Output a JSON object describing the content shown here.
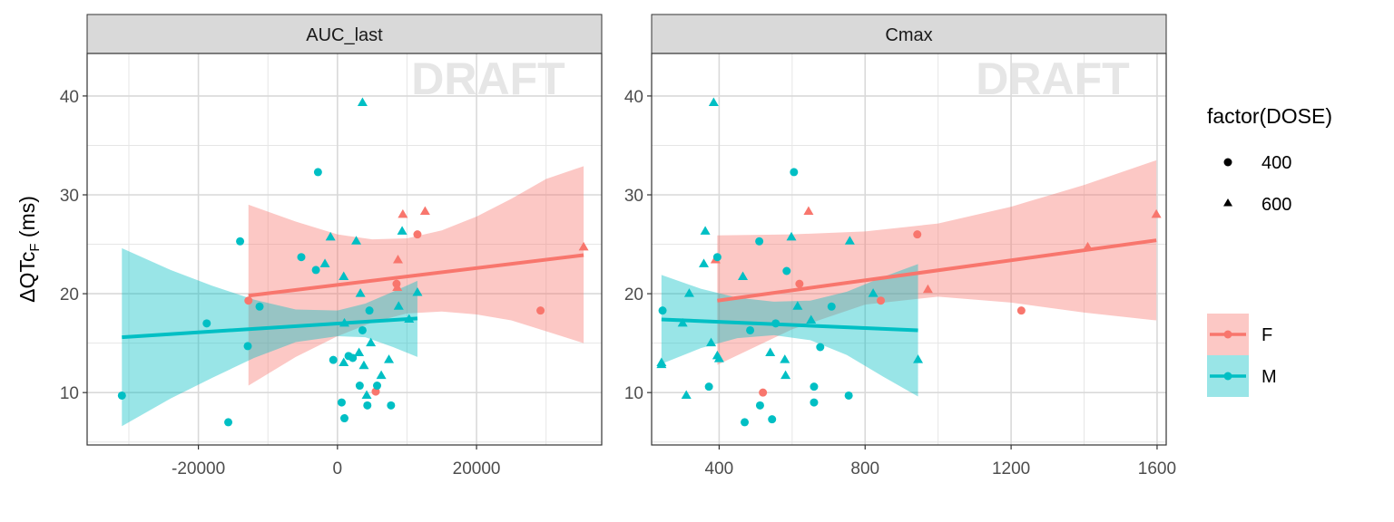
{
  "figure": {
    "ylabel_main": "ΔQTc",
    "ylabel_sub": "F",
    "ylabel_unit": " (ms)",
    "watermark": "DRAFT"
  },
  "colors": {
    "F": "#F8766D",
    "M": "#00BFC4",
    "strip_bg": "#D9D9D9",
    "watermark": "#E6E6E6",
    "grid": "#D9D9D9"
  },
  "legend": {
    "dose_title": "factor(DOSE)",
    "dose_items": [
      {
        "label": "400",
        "shape": "circle"
      },
      {
        "label": "600",
        "shape": "triangle"
      }
    ],
    "sex_items": [
      {
        "label": "F",
        "color": "#F8766D"
      },
      {
        "label": "M",
        "color": "#00BFC4"
      }
    ]
  },
  "chart_data": [
    {
      "type": "scatter",
      "facet": "AUC_last",
      "xlim": [
        -36000,
        38000
      ],
      "ylim": [
        4.7,
        44.3
      ],
      "xticks": [
        -20000,
        0,
        20000
      ],
      "xticklabels": [
        "-20000",
        "0",
        "20000"
      ],
      "yticks": [
        10,
        20,
        30,
        40
      ],
      "grid": true,
      "series": [
        {
          "name": "F",
          "points": [
            {
              "x": -12800,
              "y": 19.3,
              "dose": "400"
            },
            {
              "x": 8500,
              "y": 21.0,
              "dose": "400"
            },
            {
              "x": 5500,
              "y": 10.1,
              "dose": "400"
            },
            {
              "x": 11500,
              "y": 26.0,
              "dose": "400"
            },
            {
              "x": 29200,
              "y": 18.3,
              "dose": "400"
            },
            {
              "x": 9400,
              "y": 28.0,
              "dose": "600"
            },
            {
              "x": 12600,
              "y": 28.3,
              "dose": "600"
            },
            {
              "x": 8700,
              "y": 23.4,
              "dose": "600"
            },
            {
              "x": 8600,
              "y": 20.6,
              "dose": "600"
            },
            {
              "x": 35400,
              "y": 24.7,
              "dose": "600"
            }
          ],
          "fit": {
            "x": [
              -12800,
              35400
            ],
            "y": [
              19.8,
              23.9
            ]
          },
          "band": {
            "x": [
              -12800,
              -6000,
              0,
              5000,
              10000,
              15000,
              20000,
              25000,
              30000,
              35400
            ],
            "upper": [
              29.0,
              27.3,
              26.0,
              25.5,
              25.6,
              26.4,
              27.8,
              29.6,
              31.6,
              32.9
            ],
            "lower": [
              10.7,
              13.6,
              15.7,
              17.1,
              18.0,
              18.2,
              17.9,
              17.3,
              16.2,
              15.0
            ]
          }
        },
        {
          "name": "M",
          "points": [
            {
              "x": -31000,
              "y": 9.7,
              "dose": "400"
            },
            {
              "x": -18800,
              "y": 17.0,
              "dose": "400"
            },
            {
              "x": -15700,
              "y": 7.0,
              "dose": "400"
            },
            {
              "x": -14000,
              "y": 25.3,
              "dose": "400"
            },
            {
              "x": -12900,
              "y": 14.7,
              "dose": "400"
            },
            {
              "x": -11200,
              "y": 18.7,
              "dose": "400"
            },
            {
              "x": -5200,
              "y": 23.7,
              "dose": "400"
            },
            {
              "x": -3100,
              "y": 22.4,
              "dose": "400"
            },
            {
              "x": -2800,
              "y": 32.3,
              "dose": "400"
            },
            {
              "x": -600,
              "y": 13.3,
              "dose": "400"
            },
            {
              "x": 600,
              "y": 9.0,
              "dose": "400"
            },
            {
              "x": 1000,
              "y": 7.4,
              "dose": "400"
            },
            {
              "x": 1600,
              "y": 13.7,
              "dose": "400"
            },
            {
              "x": 2200,
              "y": 13.5,
              "dose": "400"
            },
            {
              "x": 3600,
              "y": 16.3,
              "dose": "400"
            },
            {
              "x": 3200,
              "y": 10.7,
              "dose": "400"
            },
            {
              "x": 4600,
              "y": 18.3,
              "dose": "400"
            },
            {
              "x": 4300,
              "y": 8.7,
              "dose": "400"
            },
            {
              "x": 5700,
              "y": 10.7,
              "dose": "400"
            },
            {
              "x": 7700,
              "y": 8.7,
              "dose": "400"
            },
            {
              "x": 3600,
              "y": 39.3,
              "dose": "600"
            },
            {
              "x": -1800,
              "y": 23.0,
              "dose": "600"
            },
            {
              "x": -1000,
              "y": 25.7,
              "dose": "600"
            },
            {
              "x": 900,
              "y": 21.7,
              "dose": "600"
            },
            {
              "x": 2700,
              "y": 25.3,
              "dose": "600"
            },
            {
              "x": 3300,
              "y": 20.0,
              "dose": "600"
            },
            {
              "x": 4800,
              "y": 15.0,
              "dose": "600"
            },
            {
              "x": 3100,
              "y": 14.0,
              "dose": "600"
            },
            {
              "x": 3800,
              "y": 12.7,
              "dose": "600"
            },
            {
              "x": 900,
              "y": 13.0,
              "dose": "600"
            },
            {
              "x": 4200,
              "y": 9.7,
              "dose": "600"
            },
            {
              "x": 6300,
              "y": 11.7,
              "dose": "600"
            },
            {
              "x": 7400,
              "y": 13.3,
              "dose": "600"
            },
            {
              "x": 8800,
              "y": 18.7,
              "dose": "600"
            },
            {
              "x": 9300,
              "y": 26.3,
              "dose": "600"
            },
            {
              "x": 10300,
              "y": 17.4,
              "dose": "600"
            },
            {
              "x": 11500,
              "y": 20.1,
              "dose": "600"
            },
            {
              "x": 1000,
              "y": 17.0,
              "dose": "600"
            }
          ],
          "fit": {
            "x": [
              -31000,
              11500
            ],
            "y": [
              15.6,
              17.5
            ]
          },
          "band": {
            "x": [
              -31000,
              -24000,
              -18000,
              -12000,
              -6000,
              0,
              4000,
              8000,
              11500
            ],
            "upper": [
              24.6,
              22.4,
              20.8,
              19.4,
              18.4,
              18.3,
              19.0,
              20.2,
              21.3
            ],
            "lower": [
              6.6,
              9.4,
              11.5,
              13.5,
              15.1,
              15.7,
              15.6,
              14.6,
              13.6
            ]
          }
        }
      ]
    },
    {
      "type": "scatter",
      "facet": "Cmax",
      "xlim": [
        215,
        1625
      ],
      "ylim": [
        4.7,
        44.3
      ],
      "xticks": [
        400,
        800,
        1200,
        1600
      ],
      "xticklabels": [
        "400",
        "800",
        "1200",
        "1600"
      ],
      "yticks": [
        10,
        20,
        30,
        40
      ],
      "grid": true,
      "series": [
        {
          "name": "F",
          "points": [
            {
              "x": 520,
              "y": 10.0,
              "dose": "400"
            },
            {
              "x": 620,
              "y": 21.0,
              "dose": "400"
            },
            {
              "x": 843,
              "y": 19.3,
              "dose": "400"
            },
            {
              "x": 943,
              "y": 26.0,
              "dose": "400"
            },
            {
              "x": 1228,
              "y": 18.3,
              "dose": "400"
            },
            {
              "x": 390,
              "y": 23.4,
              "dose": "600"
            },
            {
              "x": 645,
              "y": 28.3,
              "dose": "600"
            },
            {
              "x": 972,
              "y": 20.4,
              "dose": "600"
            },
            {
              "x": 1410,
              "y": 24.7,
              "dose": "600"
            },
            {
              "x": 1598,
              "y": 28.0,
              "dose": "600"
            }
          ],
          "fit": {
            "x": [
              395,
              1598
            ],
            "y": [
              19.3,
              25.4
            ]
          },
          "band": {
            "x": [
              395,
              600,
              800,
              1000,
              1200,
              1400,
              1598
            ],
            "upper": [
              25.9,
              26.0,
              26.3,
              27.1,
              28.8,
              31.0,
              33.5
            ],
            "lower": [
              12.8,
              16.4,
              18.9,
              19.7,
              19.1,
              18.1,
              17.3
            ]
          }
        },
        {
          "name": "M",
          "points": [
            {
              "x": 245,
              "y": 18.3,
              "dose": "400"
            },
            {
              "x": 395,
              "y": 23.7,
              "dose": "400"
            },
            {
              "x": 372,
              "y": 10.6,
              "dose": "400"
            },
            {
              "x": 470,
              "y": 7.0,
              "dose": "400"
            },
            {
              "x": 485,
              "y": 16.3,
              "dose": "400"
            },
            {
              "x": 510,
              "y": 25.3,
              "dose": "400"
            },
            {
              "x": 512,
              "y": 8.7,
              "dose": "400"
            },
            {
              "x": 545,
              "y": 7.3,
              "dose": "400"
            },
            {
              "x": 555,
              "y": 17.0,
              "dose": "400"
            },
            {
              "x": 585,
              "y": 22.3,
              "dose": "400"
            },
            {
              "x": 605,
              "y": 32.3,
              "dose": "400"
            },
            {
              "x": 660,
              "y": 10.6,
              "dose": "400"
            },
            {
              "x": 660,
              "y": 9.0,
              "dose": "400"
            },
            {
              "x": 677,
              "y": 14.6,
              "dose": "400"
            },
            {
              "x": 708,
              "y": 18.7,
              "dose": "400"
            },
            {
              "x": 755,
              "y": 9.7,
              "dose": "400"
            },
            {
              "x": 385,
              "y": 39.3,
              "dose": "600"
            },
            {
              "x": 362,
              "y": 26.3,
              "dose": "600"
            },
            {
              "x": 358,
              "y": 23.0,
              "dose": "600"
            },
            {
              "x": 318,
              "y": 20.0,
              "dose": "600"
            },
            {
              "x": 300,
              "y": 17.0,
              "dose": "600"
            },
            {
              "x": 378,
              "y": 15.0,
              "dose": "600"
            },
            {
              "x": 395,
              "y": 13.7,
              "dose": "600"
            },
            {
              "x": 400,
              "y": 13.4,
              "dose": "600"
            },
            {
              "x": 242,
              "y": 13.0,
              "dose": "600"
            },
            {
              "x": 242,
              "y": 12.8,
              "dose": "600"
            },
            {
              "x": 310,
              "y": 9.7,
              "dose": "600"
            },
            {
              "x": 465,
              "y": 21.7,
              "dose": "600"
            },
            {
              "x": 540,
              "y": 14.0,
              "dose": "600"
            },
            {
              "x": 580,
              "y": 13.3,
              "dose": "600"
            },
            {
              "x": 582,
              "y": 11.7,
              "dose": "600"
            },
            {
              "x": 598,
              "y": 25.7,
              "dose": "600"
            },
            {
              "x": 615,
              "y": 18.7,
              "dose": "600"
            },
            {
              "x": 652,
              "y": 17.3,
              "dose": "600"
            },
            {
              "x": 758,
              "y": 25.3,
              "dose": "600"
            },
            {
              "x": 822,
              "y": 20.0,
              "dose": "600"
            },
            {
              "x": 945,
              "y": 13.3,
              "dose": "600"
            }
          ],
          "fit": {
            "x": [
              242,
              945
            ],
            "y": [
              17.4,
              16.3
            ]
          },
          "band": {
            "x": [
              242,
              350,
              450,
              550,
              650,
              750,
              850,
              945
            ],
            "upper": [
              21.9,
              20.5,
              19.6,
              19.2,
              19.3,
              20.2,
              21.7,
              23.0
            ],
            "lower": [
              12.9,
              14.5,
              15.5,
              15.8,
              15.3,
              13.8,
              11.6,
              9.6
            ]
          }
        }
      ]
    }
  ]
}
